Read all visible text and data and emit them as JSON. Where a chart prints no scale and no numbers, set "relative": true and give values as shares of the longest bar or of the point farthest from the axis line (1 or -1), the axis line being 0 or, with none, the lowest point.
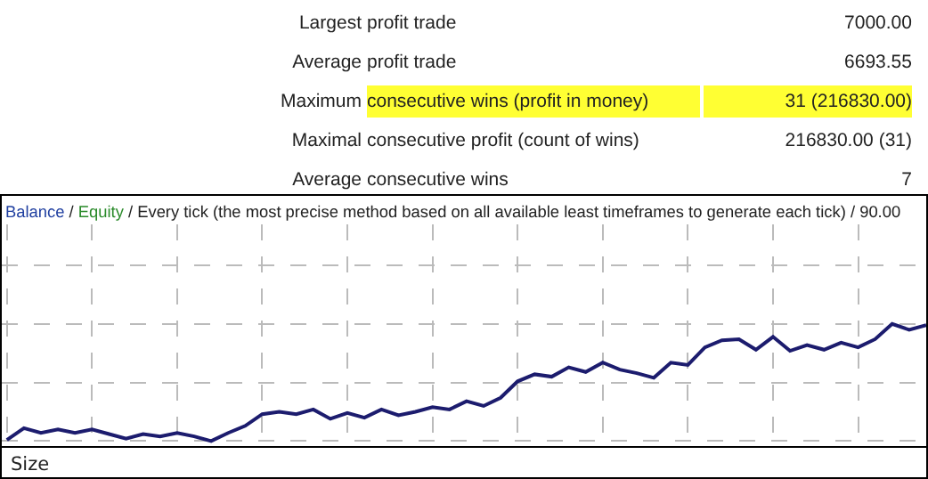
{
  "chart_data": [
    {
      "type": "other",
      "annotations": [
        "Largest",
        "profit trade",
        "7000.00",
        "Average",
        "profit trade",
        "6693.55",
        "Maximum",
        "consecutive wins (profit in money)",
        "31 (216830.00)",
        "Maximal",
        "consecutive profit (count of wins)",
        "216830.00 (31)",
        "Average",
        "consecutive wins",
        "7"
      ],
      "colors": [
        null,
        null,
        null,
        null,
        null,
        null,
        null,
        "#ffff33",
        "#ffff33",
        null,
        null,
        null,
        null,
        null,
        null
      ]
    },
    {
      "type": "line",
      "title": "Balance / Equity / Every tick (the most precise method based on all available least timeframes to generate each tick) / 90.00",
      "annotations": [
        "Size"
      ],
      "relative": true,
      "grid": true,
      "categories": [
        null,
        null,
        null,
        null,
        null,
        null,
        null,
        null,
        null,
        null,
        null,
        null,
        null,
        null,
        null,
        null,
        null,
        null,
        null,
        null,
        null,
        null,
        null,
        null,
        null,
        null,
        null,
        null,
        null,
        null,
        null,
        null,
        null,
        null,
        null,
        null,
        null,
        null,
        null,
        null,
        null,
        null,
        null,
        null,
        null,
        null,
        null,
        null,
        null,
        null,
        null,
        null,
        null,
        null,
        null
      ],
      "series": [
        {
          "color": "#1c1c6e",
          "values": [
            0.01,
            0.11,
            0.07,
            0.1,
            0.07,
            0.1,
            0.06,
            0.02,
            0.06,
            0.04,
            0.07,
            0.04,
            0,
            0.07,
            0.13,
            0.23,
            0.25,
            0.23,
            0.27,
            0.19,
            0.24,
            0.2,
            0.27,
            0.22,
            0.25,
            0.29,
            0.27,
            0.34,
            0.3,
            0.37,
            0.51,
            0.57,
            0.55,
            0.63,
            0.59,
            0.67,
            0.61,
            0.58,
            0.54,
            0.67,
            0.65,
            0.8,
            0.86,
            0.87,
            0.78,
            0.89,
            0.77,
            0.82,
            0.78,
            0.84,
            0.8,
            0.87,
            1,
            0.95,
            0.99
          ]
        }
      ]
    }
  ]
}
